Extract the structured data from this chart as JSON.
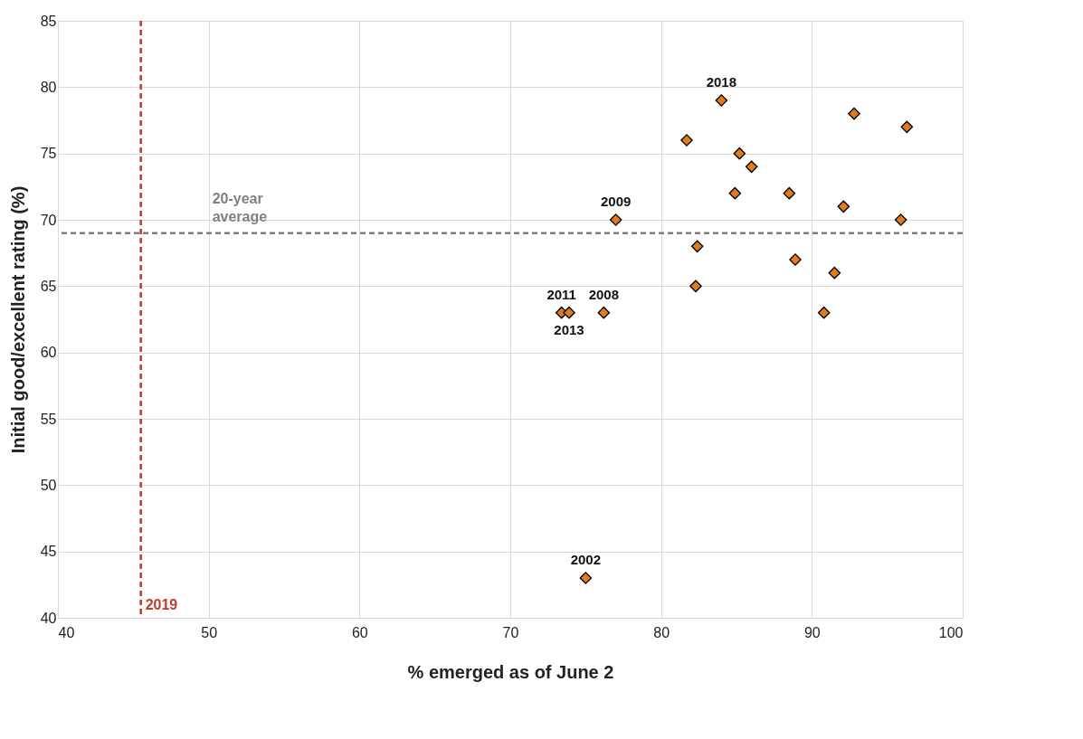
{
  "chart_data": {
    "type": "scatter",
    "xlabel": "% emerged as of June 2",
    "ylabel": "Initial good/excellent rating (%)",
    "x": [
      84,
      92.8,
      96.3,
      81.7,
      85.2,
      86,
      84.9,
      88.5,
      92.1,
      95.9,
      77,
      82.4,
      88.9,
      91.5,
      82.3,
      90.8,
      73.4,
      73.9,
      76.2,
      75
    ],
    "series": [
      {
        "color": "#e07b20",
        "values": [
          79,
          78,
          77,
          76,
          75,
          74,
          72,
          72,
          71,
          70,
          70,
          68,
          67,
          66,
          65,
          63,
          63,
          63,
          63,
          43
        ]
      }
    ],
    "xlim": [
      40,
      100
    ],
    "xticks": [
      40,
      50,
      60,
      70,
      80,
      90,
      100
    ],
    "ylim": [
      40,
      85
    ],
    "yticks": [
      40,
      45,
      50,
      55,
      60,
      65,
      70,
      75,
      80,
      85
    ],
    "grid": true,
    "marker": "diamond",
    "ref_lines": [
      {
        "axis": "x",
        "value": 45.5,
        "color": "#c0392b",
        "line_style": "dashed"
      },
      {
        "axis": "y",
        "value": 69,
        "label": "20-year average",
        "color": "#7f7f7f",
        "line_style": "dashed"
      }
    ],
    "annotations": [
      {
        "text": "2019",
        "x": 45.5
      },
      {
        "text": "2018",
        "x": 84,
        "y": 79
      },
      {
        "text": "2009",
        "x": 77,
        "y": 70
      },
      {
        "text": "2011",
        "x": 73.4,
        "y": 63
      },
      {
        "text": "2013",
        "x": 73.9,
        "y": 63
      },
      {
        "text": "2008",
        "x": 76.2,
        "y": 63
      },
      {
        "text": "2002",
        "x": 75,
        "y": 43
      }
    ]
  }
}
